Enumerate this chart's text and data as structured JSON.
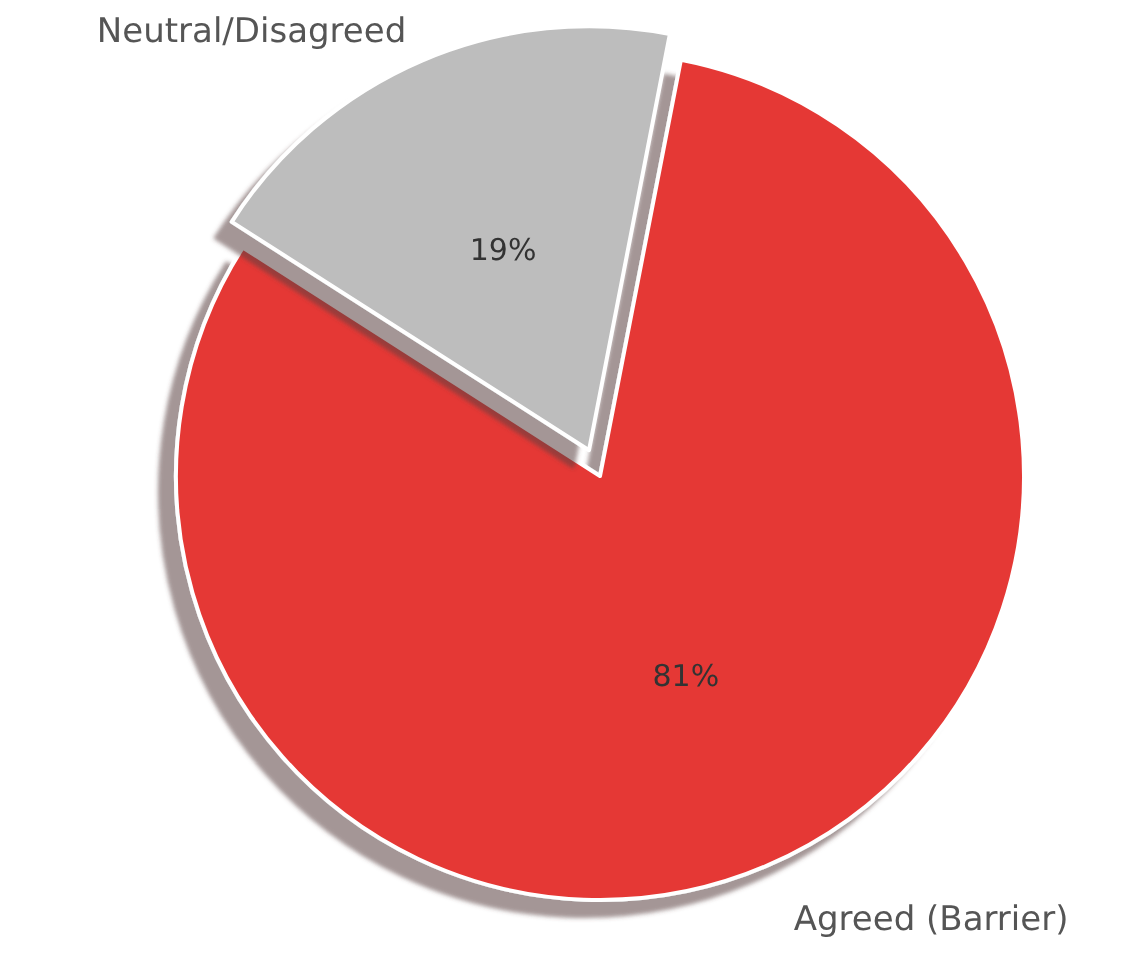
{
  "chart_data": {
    "type": "pie",
    "categories": [
      "Neutral/Disagreed",
      "Agreed (Barrier)"
    ],
    "values": [
      19,
      81
    ],
    "colors": [
      "#bdbdbd",
      "#e53935"
    ],
    "value_labels": [
      "19%",
      "81%"
    ]
  }
}
